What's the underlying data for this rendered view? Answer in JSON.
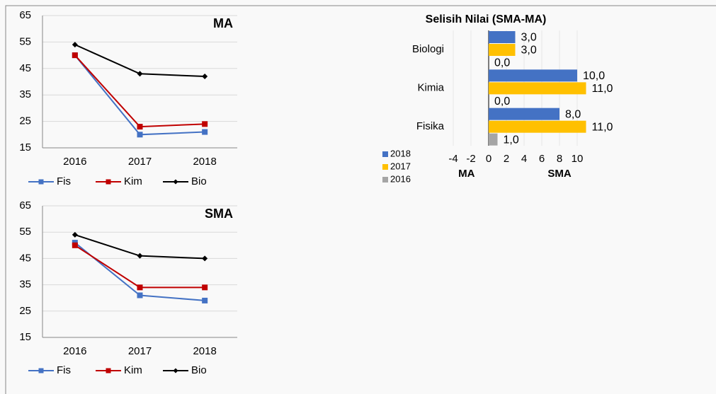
{
  "chart_data": [
    {
      "type": "line",
      "title": "MA",
      "categories": [
        "2016",
        "2017",
        "2018"
      ],
      "series": [
        {
          "name": "Fis",
          "color": "#4472c4",
          "marker": "square",
          "values": [
            50,
            20,
            21
          ]
        },
        {
          "name": "Kim",
          "color": "#c00000",
          "marker": "square",
          "values": [
            50,
            23,
            24
          ]
        },
        {
          "name": "Bio",
          "color": "#000000",
          "marker": "diamond",
          "values": [
            54,
            43,
            42
          ]
        }
      ],
      "ylim": [
        15,
        65
      ],
      "yticks": [
        15,
        25,
        35,
        45,
        55,
        65
      ],
      "grid": true,
      "legend": "bottom"
    },
    {
      "type": "line",
      "title": "SMA",
      "categories": [
        "2016",
        "2017",
        "2018"
      ],
      "series": [
        {
          "name": "Fis",
          "color": "#4472c4",
          "marker": "square",
          "values": [
            51,
            31,
            29
          ]
        },
        {
          "name": "Kim",
          "color": "#c00000",
          "marker": "square",
          "values": [
            50,
            34,
            34
          ]
        },
        {
          "name": "Bio",
          "color": "#000000",
          "marker": "diamond",
          "values": [
            54,
            46,
            45
          ]
        }
      ],
      "ylim": [
        15,
        65
      ],
      "yticks": [
        15,
        25,
        35,
        45,
        55,
        65
      ],
      "grid": true,
      "legend": "bottom"
    },
    {
      "type": "hbar",
      "title": "Selisih Nilai (SMA-MA)",
      "categories": [
        "Biologi",
        "Kimia",
        "Fisika"
      ],
      "series": [
        {
          "name": "2018",
          "color": "#4472c4",
          "values": [
            3,
            10,
            8
          ],
          "value_labels": [
            "3,0",
            "10,0",
            "8,0"
          ]
        },
        {
          "name": "2017",
          "color": "#ffc000",
          "values": [
            3,
            11,
            11
          ],
          "value_labels": [
            "3,0",
            "11,0",
            "11,0"
          ]
        },
        {
          "name": "2016",
          "color": "#a5a5a5",
          "values": [
            0,
            0,
            1
          ],
          "value_labels": [
            "0,0",
            "0,0",
            "1,0"
          ]
        }
      ],
      "xlim": [
        -4,
        12
      ],
      "xticks": [
        -4,
        -2,
        0,
        2,
        4,
        6,
        8,
        10
      ],
      "grid": true,
      "legend": "bottom-left",
      "x_label_left": "MA",
      "x_label_right": "SMA"
    }
  ]
}
